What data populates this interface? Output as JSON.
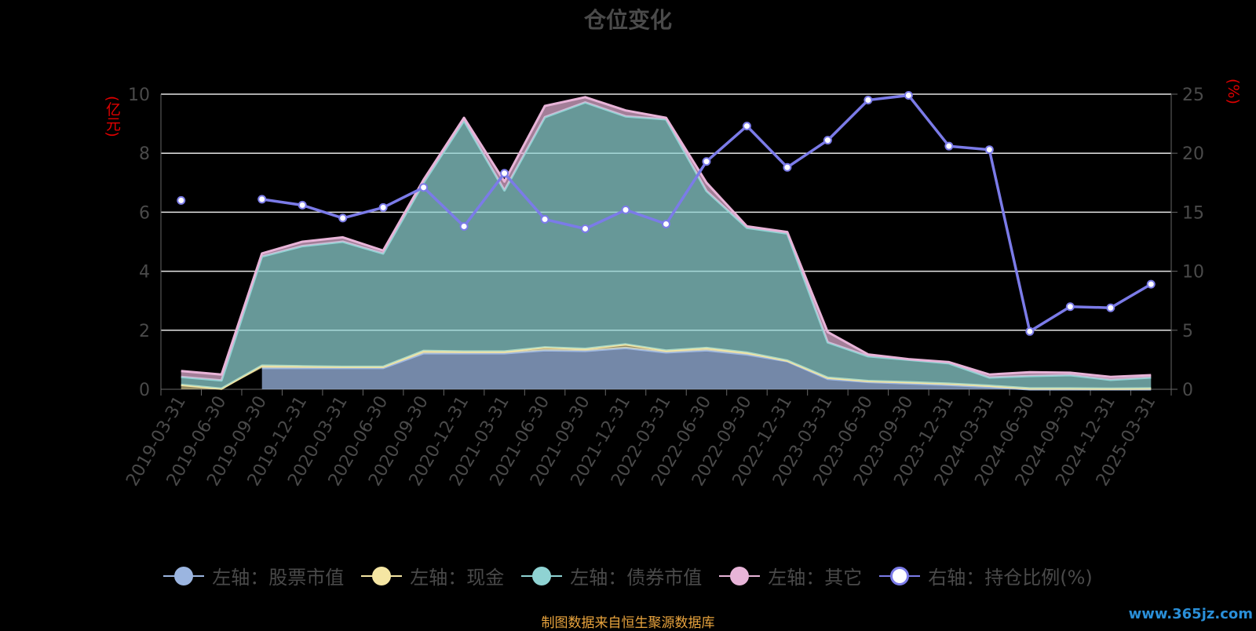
{
  "title": "仓位变化",
  "source_text": "制图数据来自恒生聚源数据库",
  "watermark_text": "www.365jz.com",
  "chart_data": {
    "type": "area",
    "categories": [
      "2019-03-31",
      "2019-06-30",
      "2019-09-30",
      "2019-12-31",
      "2020-03-31",
      "2020-06-30",
      "2020-09-30",
      "2020-12-31",
      "2021-03-31",
      "2021-06-30",
      "2021-09-30",
      "2021-12-31",
      "2022-03-31",
      "2022-06-30",
      "2022-09-30",
      "2022-12-31",
      "2023-03-31",
      "2023-06-30",
      "2023-09-30",
      "2023-12-31",
      "2024-03-31",
      "2024-06-30",
      "2024-09-30",
      "2024-12-31",
      "2025-03-31"
    ],
    "ylabel_left": "(亿元)",
    "ylabel_right": "(%)",
    "ylim_left": [
      0,
      10
    ],
    "ylim_right": [
      0,
      25
    ],
    "yticks_left": [
      "0",
      "2",
      "4",
      "6",
      "8",
      "10"
    ],
    "yticks_right": [
      "0",
      "5",
      "10",
      "15",
      "20",
      "25"
    ],
    "grid": true,
    "legend_position": "bottom",
    "series": [
      {
        "name": "左轴：股票市值",
        "axis": "left",
        "kind": "stacked-area",
        "color": "#9bb5e0",
        "values": [
          null,
          null,
          0.72,
          0.72,
          0.72,
          0.72,
          1.22,
          1.22,
          1.22,
          1.32,
          1.3,
          1.4,
          1.25,
          1.32,
          1.18,
          0.95,
          0.35,
          0.25,
          0.2,
          0.15,
          0.08,
          0.0,
          0.0,
          0.0,
          0.0
        ]
      },
      {
        "name": "左轴：现金",
        "axis": "left",
        "kind": "stacked-area",
        "color": "#f5e6a3",
        "values": [
          0.15,
          0.02,
          0.08,
          0.06,
          0.04,
          0.04,
          0.08,
          0.06,
          0.06,
          0.1,
          0.07,
          0.12,
          0.06,
          0.08,
          0.06,
          0.02,
          0.04,
          0.03,
          0.04,
          0.04,
          0.04,
          0.03,
          0.03,
          0.02,
          0.03
        ]
      },
      {
        "name": "左轴：债券市值",
        "axis": "left",
        "kind": "stacked-area",
        "color": "#8fd3d3",
        "values": [
          0.27,
          0.28,
          3.7,
          4.07,
          4.24,
          3.84,
          5.7,
          7.82,
          5.46,
          7.8,
          8.35,
          7.73,
          7.84,
          5.32,
          4.23,
          4.31,
          1.2,
          0.84,
          0.76,
          0.69,
          0.28,
          0.42,
          0.45,
          0.3,
          0.37
        ]
      },
      {
        "name": "左轴：其它",
        "axis": "left",
        "kind": "stacked-area",
        "color": "#e8b4d8",
        "values": [
          0.2,
          0.2,
          0.1,
          0.15,
          0.15,
          0.1,
          0.1,
          0.1,
          0.3,
          0.38,
          0.18,
          0.2,
          0.05,
          0.28,
          0.05,
          0.05,
          0.35,
          0.06,
          0.02,
          0.04,
          0.1,
          0.13,
          0.08,
          0.1,
          0.08
        ]
      },
      {
        "name": "右轴：持仓比例(%)",
        "axis": "right",
        "kind": "line",
        "color": "#7b7be8",
        "values": [
          16.0,
          null,
          16.1,
          15.6,
          14.5,
          15.4,
          17.1,
          13.8,
          18.3,
          14.4,
          13.6,
          15.2,
          14.0,
          19.3,
          22.3,
          18.8,
          21.1,
          24.5,
          24.9,
          20.6,
          20.3,
          4.9,
          7.0,
          6.9,
          8.9
        ]
      }
    ]
  }
}
